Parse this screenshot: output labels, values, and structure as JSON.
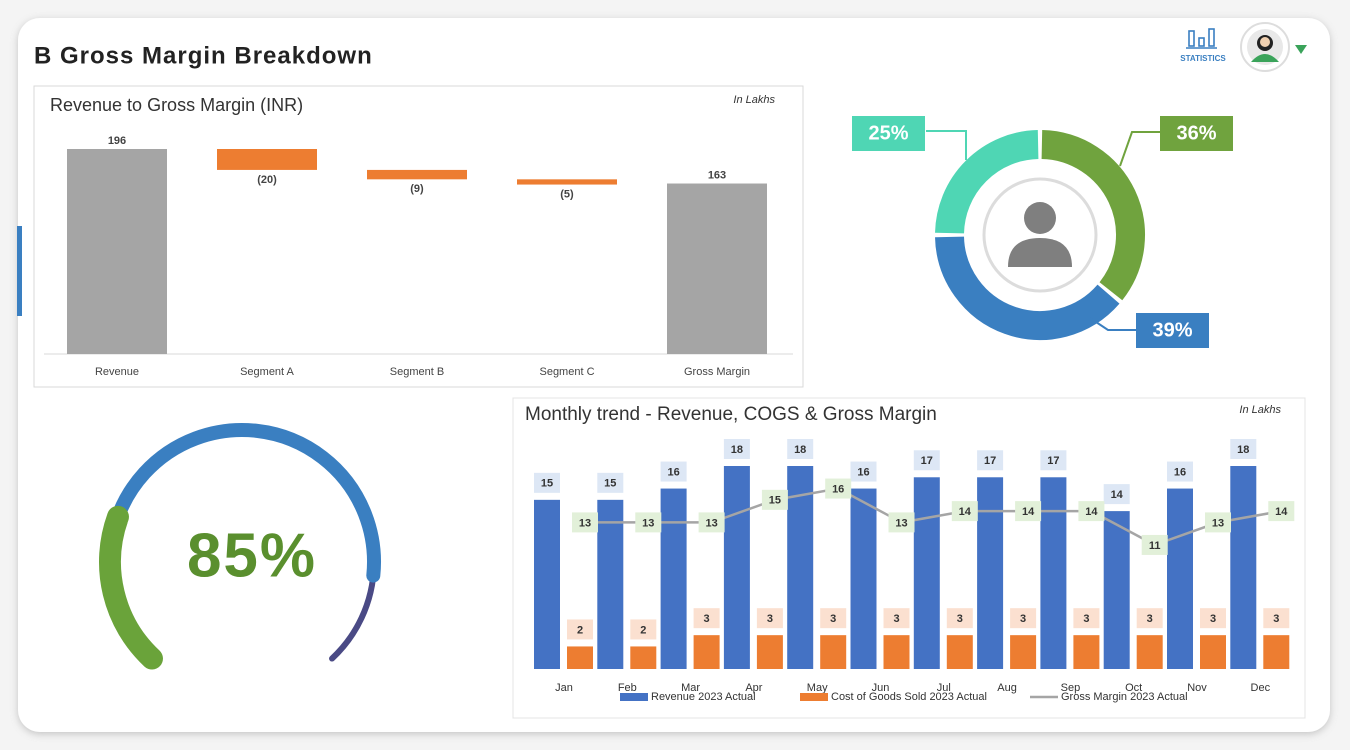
{
  "header": {
    "title": "B Gross Margin Breakdown",
    "statistics_label": "STATISTICS"
  },
  "chart_data": [
    {
      "type": "waterfall",
      "title": "Revenue to Gross Margin (INR)",
      "note": "In Lakhs",
      "categories": [
        "Revenue",
        "Segment A",
        "Segment B",
        "Segment C",
        "Gross Margin"
      ],
      "values": [
        196,
        -20,
        -9,
        -5,
        163
      ],
      "value_labels": [
        "196",
        "(20)",
        "(9)",
        "(5)",
        "163"
      ],
      "total_color": "#a5a5a5",
      "decrease_color": "#ed7d31"
    },
    {
      "type": "donut",
      "values": [
        36,
        39,
        25
      ],
      "value_labels": [
        "36%",
        "39%",
        "25%"
      ],
      "colors": [
        "#70a33e",
        "#3a7fc1",
        "#4fd6b4"
      ]
    },
    {
      "type": "gauge",
      "values": [
        85
      ],
      "value_labels": [
        "85%"
      ],
      "color": "#3a7fc1",
      "text_color": "#5a8f2e"
    },
    {
      "type": "combo",
      "title": "Monthly trend - Revenue, COGS & Gross Margin",
      "note": "In Lakhs",
      "categories": [
        "Jan",
        "Feb",
        "Mar",
        "Apr",
        "May",
        "Jun",
        "Jul",
        "Aug",
        "Sep",
        "Oct",
        "Nov",
        "Dec"
      ],
      "series": [
        {
          "name": "Revenue 2023 Actual",
          "color": "#4472c4",
          "kind": "bar",
          "values": [
            15,
            15,
            16,
            18,
            18,
            16,
            17,
            17,
            17,
            14,
            16,
            18
          ]
        },
        {
          "name": "Cost of Goods Sold 2023 Actual",
          "color": "#ed7d31",
          "kind": "bar",
          "values": [
            2,
            2,
            3,
            3,
            3,
            3,
            3,
            3,
            3,
            3,
            3,
            3
          ]
        },
        {
          "name": "Gross Margin 2023 Actual",
          "color": "#a5a5a5",
          "kind": "line",
          "values": [
            13,
            13,
            13,
            15,
            16,
            13,
            14,
            14,
            14,
            11,
            13,
            14
          ]
        }
      ]
    }
  ]
}
